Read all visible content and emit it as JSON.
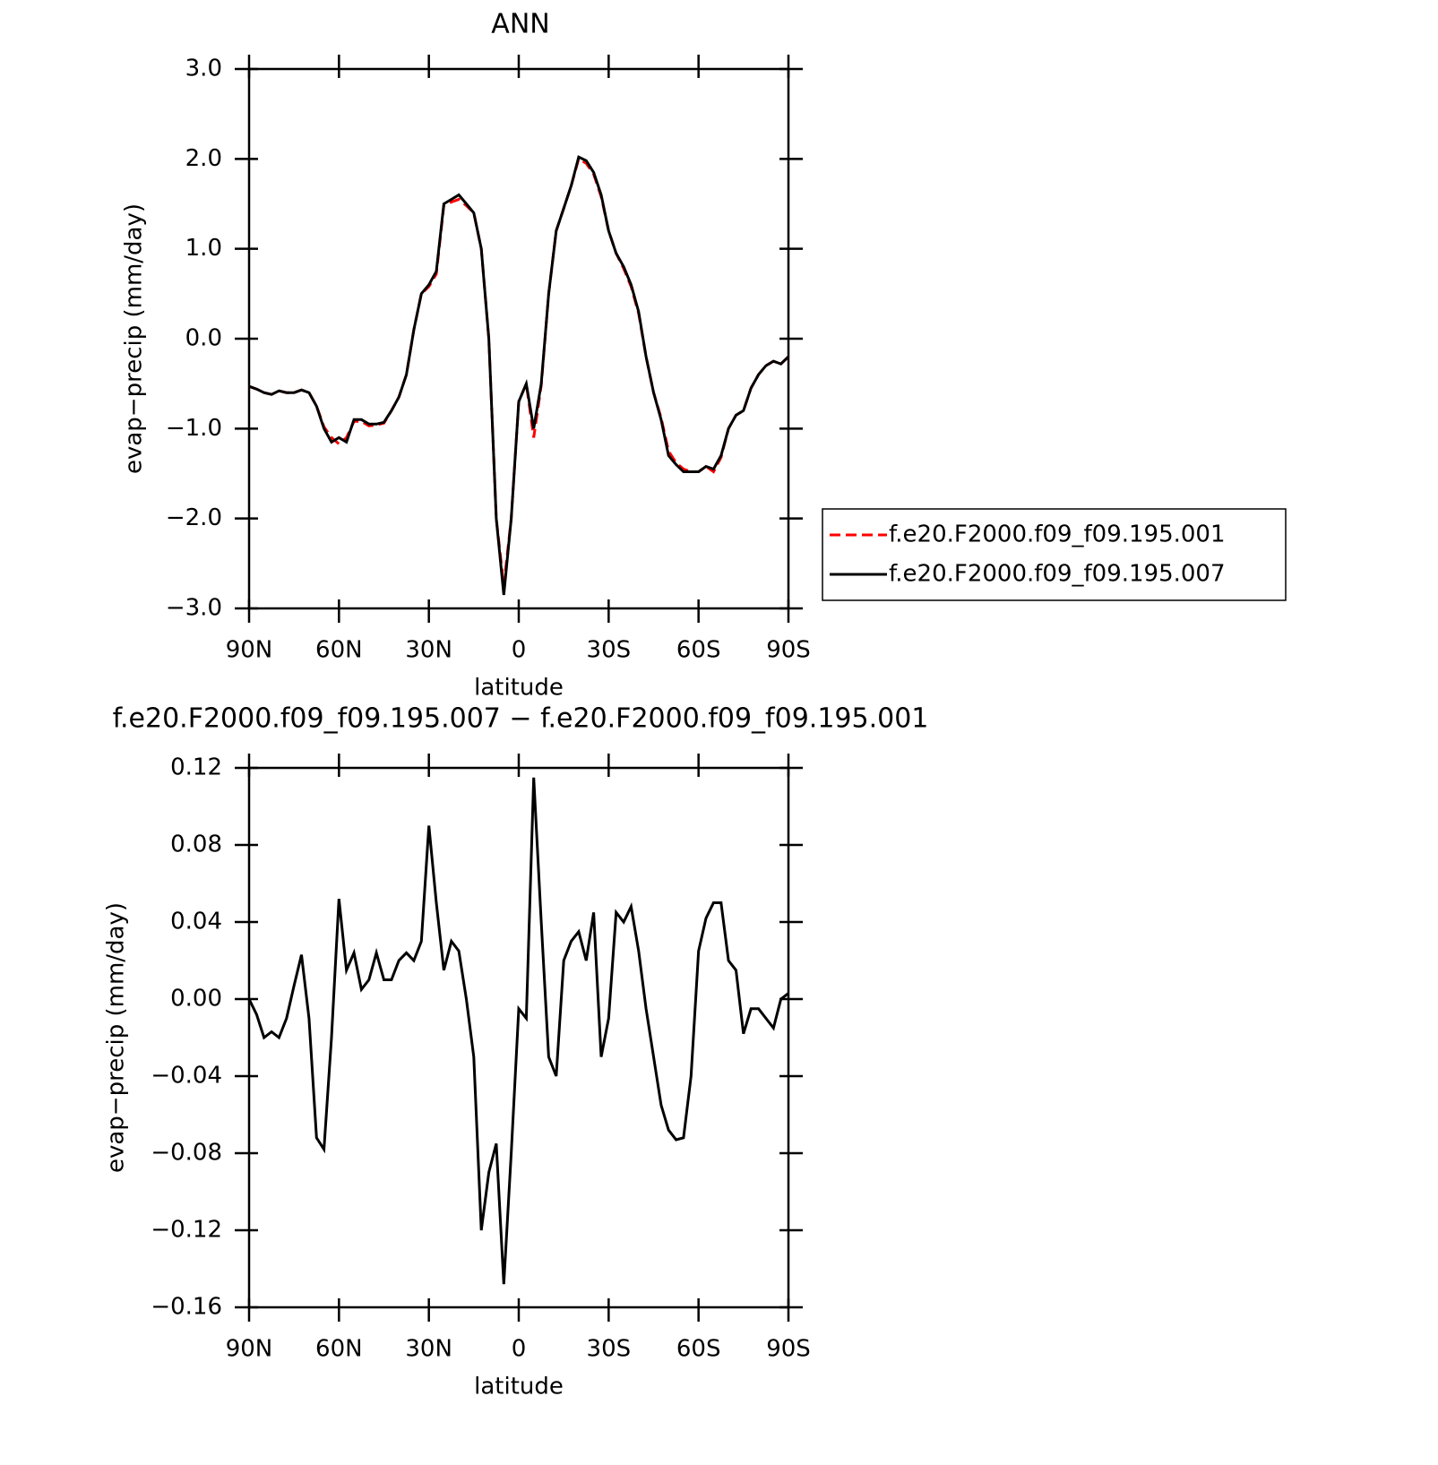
{
  "chart_data": [
    {
      "type": "line",
      "title": "ANN",
      "x_label": "latitude",
      "y_label": "evap−precip (mm/day)",
      "xlim": [
        90,
        -90
      ],
      "xticks": [
        {
          "value": 90,
          "label": "90N"
        },
        {
          "value": 60,
          "label": "60N"
        },
        {
          "value": 30,
          "label": "30N"
        },
        0,
        {
          "value": -30,
          "label": "30S"
        },
        {
          "value": -60,
          "label": "60S"
        },
        {
          "value": -90,
          "label": "90S"
        }
      ],
      "ylim": [
        -3,
        3
      ],
      "yticks": [
        {
          "value": 3,
          "label": "3.0"
        },
        {
          "value": 2,
          "label": "2.0"
        },
        {
          "value": 1,
          "label": "1.0"
        },
        {
          "value": 0,
          "label": "0.0"
        },
        {
          "value": -1,
          "label": "−1.0"
        },
        {
          "value": -2,
          "label": "−2.0"
        },
        {
          "value": -3,
          "label": "−3.0"
        }
      ],
      "x": [
        90,
        87.5,
        85,
        82.5,
        80,
        77.5,
        75,
        72.5,
        70,
        67.5,
        65,
        62.5,
        60,
        57.5,
        55,
        52.5,
        50,
        47.5,
        45,
        42.5,
        40,
        37.5,
        35,
        32.5,
        30,
        27.5,
        25,
        22.5,
        20,
        17.5,
        15,
        12.5,
        10,
        7.5,
        5,
        2.5,
        0,
        -2.5,
        -5,
        -7.5,
        -10,
        -12.5,
        -15,
        -17.5,
        -20,
        -22.5,
        -25,
        -27.5,
        -30,
        -32.5,
        -35,
        -37.5,
        -40,
        -42.5,
        -45,
        -47.5,
        -50,
        -52.5,
        -55,
        -57.5,
        -60,
        -62.5,
        -65,
        -67.5,
        -70,
        -72.5,
        -75,
        -77.5,
        -80,
        -82.5,
        -85,
        -87.5,
        -90
      ],
      "legend": "right",
      "series": [
        {
          "name": "f.e20.F2000.f09_f09.195.001",
          "color": "#ff0000",
          "line_style": "dashed",
          "values": [
            -0.53,
            -0.56,
            -0.6,
            -0.62,
            -0.58,
            -0.6,
            -0.6,
            -0.57,
            -0.6,
            -0.75,
            -0.98,
            -1.1,
            -1.17,
            -1.1,
            -0.92,
            -0.92,
            -0.97,
            -0.96,
            -0.94,
            -0.8,
            -0.65,
            -0.4,
            0.1,
            0.5,
            0.58,
            0.72,
            1.48,
            1.52,
            1.55,
            1.48,
            1.4,
            1.0,
            0.0,
            -2.0,
            -2.75,
            -2.0,
            -0.7,
            -0.5,
            -1.1,
            -0.52,
            0.5,
            1.2,
            1.45,
            1.7,
            2.0,
            1.95,
            1.83,
            1.58,
            1.2,
            0.95,
            0.78,
            0.58,
            0.28,
            -0.2,
            -0.6,
            -0.88,
            -1.25,
            -1.38,
            -1.45,
            -1.48,
            -1.48,
            -1.42,
            -1.48,
            -1.32,
            -1.0,
            -0.85,
            -0.8,
            -0.55,
            -0.4,
            -0.3,
            -0.25,
            -0.28,
            -0.2
          ]
        },
        {
          "name": "f.e20.F2000.f09_f09.195.007",
          "color": "#000000",
          "line_style": "solid",
          "values": [
            -0.53,
            -0.56,
            -0.6,
            -0.62,
            -0.58,
            -0.6,
            -0.6,
            -0.57,
            -0.6,
            -0.75,
            -1.0,
            -1.15,
            -1.1,
            -1.15,
            -0.9,
            -0.9,
            -0.95,
            -0.95,
            -0.93,
            -0.8,
            -0.65,
            -0.4,
            0.1,
            0.5,
            0.6,
            0.75,
            1.5,
            1.55,
            1.6,
            1.5,
            1.4,
            1.0,
            0.0,
            -2.0,
            -2.85,
            -2.0,
            -0.7,
            -0.5,
            -1.0,
            -0.5,
            0.5,
            1.2,
            1.45,
            1.7,
            2.02,
            1.98,
            1.85,
            1.6,
            1.2,
            0.95,
            0.8,
            0.6,
            0.3,
            -0.2,
            -0.6,
            -0.9,
            -1.3,
            -1.4,
            -1.48,
            -1.48,
            -1.48,
            -1.42,
            -1.45,
            -1.3,
            -1.0,
            -0.85,
            -0.8,
            -0.55,
            -0.4,
            -0.3,
            -0.25,
            -0.28,
            -0.2
          ]
        }
      ]
    },
    {
      "type": "line",
      "title": "f.e20.F2000.f09_f09.195.007 − f.e20.F2000.f09_f09.195.001",
      "x_label": "latitude",
      "y_label": "evap−precip (mm/day)",
      "xlim": [
        90,
        -90
      ],
      "xticks": [
        {
          "value": 90,
          "label": "90N"
        },
        {
          "value": 60,
          "label": "60N"
        },
        {
          "value": 30,
          "label": "30N"
        },
        0,
        {
          "value": -30,
          "label": "30S"
        },
        {
          "value": -60,
          "label": "60S"
        },
        {
          "value": -90,
          "label": "90S"
        }
      ],
      "ylim": [
        -0.16,
        0.12
      ],
      "yticks": [
        0.12,
        0.08,
        0.04,
        {
          "value": 0,
          "label": "0.00"
        },
        {
          "value": -0.04,
          "label": "−0.04"
        },
        {
          "value": -0.08,
          "label": "−0.08"
        },
        {
          "value": -0.12,
          "label": "−0.12"
        },
        {
          "value": -0.16,
          "label": "−0.16"
        }
      ],
      "x": [
        90,
        87.5,
        85,
        82.5,
        80,
        77.5,
        75,
        72.5,
        70,
        67.5,
        65,
        62.5,
        60,
        57.5,
        55,
        52.5,
        50,
        47.5,
        45,
        42.5,
        40,
        37.5,
        35,
        32.5,
        30,
        27.5,
        25,
        22.5,
        20,
        17.5,
        15,
        12.5,
        10,
        7.5,
        5,
        2.5,
        0,
        -2.5,
        -5,
        -7.5,
        -10,
        -12.5,
        -15,
        -17.5,
        -20,
        -22.5,
        -25,
        -27.5,
        -30,
        -32.5,
        -35,
        -37.5,
        -40,
        -42.5,
        -45,
        -47.5,
        -50,
        -52.5,
        -55,
        -57.5,
        -60,
        -62.5,
        -65,
        -67.5,
        -70,
        -72.5,
        -75,
        -77.5,
        -80,
        -82.5,
        -85,
        -87.5,
        -90
      ],
      "series": [
        {
          "color": "#000000",
          "line_style": "solid",
          "values": [
            0.0,
            -0.008,
            -0.02,
            -0.017,
            -0.02,
            -0.01,
            0.007,
            0.023,
            -0.01,
            -0.072,
            -0.078,
            -0.02,
            0.052,
            0.015,
            0.024,
            0.005,
            0.01,
            0.024,
            0.01,
            0.01,
            0.02,
            0.024,
            0.02,
            0.03,
            0.09,
            0.05,
            0.015,
            0.03,
            0.025,
            0.0,
            -0.03,
            -0.12,
            -0.09,
            -0.075,
            -0.148,
            -0.08,
            -0.005,
            -0.01,
            0.115,
            0.04,
            -0.03,
            -0.04,
            0.02,
            0.03,
            0.035,
            0.02,
            0.045,
            -0.03,
            -0.01,
            0.045,
            0.04,
            0.048,
            0.025,
            -0.005,
            -0.03,
            -0.055,
            -0.068,
            -0.073,
            -0.072,
            -0.04,
            0.025,
            0.042,
            0.05,
            0.05,
            0.02,
            0.015,
            -0.018,
            -0.005,
            -0.005,
            -0.01,
            -0.015,
            0.0,
            0.003
          ]
        }
      ]
    }
  ]
}
